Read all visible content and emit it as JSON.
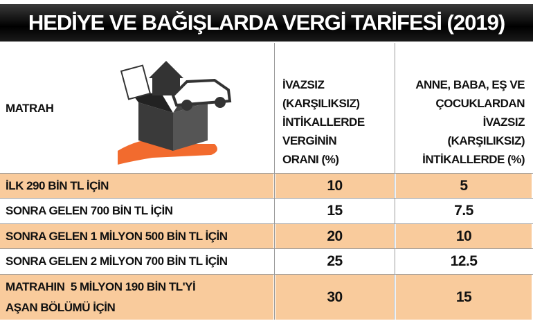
{
  "title": "HEDİYE VE BAĞIŞLARDA VERGİ TARİFESİ (2019)",
  "table": {
    "header": [
      [
        "MATRAH"
      ],
      [
        "İVAZSIZ",
        "(KARŞILIKSIZ)",
        "İNTİKALLERDE",
        "VERGİNİN",
        "ORANI (%)"
      ],
      [
        "ANNE, BABA, EŞ VE",
        "ÇOCUKLARDAN",
        "İVAZSIZ",
        "(KARŞILIKSIZ)",
        "İNTİKALLERDE (%)"
      ]
    ],
    "rows": [
      [
        [
          "İLK 290 BİN TL İÇİN"
        ],
        "10",
        "5"
      ],
      [
        [
          "SONRA GELEN 700 BİN TL İÇİN"
        ],
        "15",
        "7.5"
      ],
      [
        [
          "SONRA GELEN 1 MİLYON 500 BİN TL İÇİN"
        ],
        "20",
        "10"
      ],
      [
        [
          "SONRA GELEN 2 MİLYON 700 BİN TL İÇİN"
        ],
        "25",
        "12.5"
      ],
      [
        [
          "MATRAHIN  5 MİLYON 190 BİN TL'Yİ",
          "AŞAN BÖLÜMÜ İÇİN"
        ],
        "30",
        "15"
      ]
    ]
  }
}
